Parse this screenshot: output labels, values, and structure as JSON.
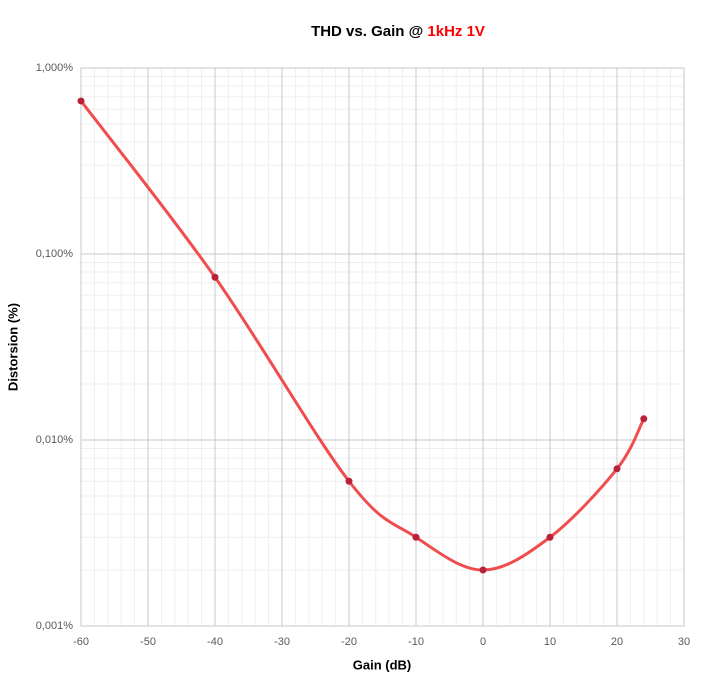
{
  "chart_data": {
    "type": "line",
    "title": "THD vs. Gain @",
    "title_highlight": "1kHz 1V",
    "x_label": "Gain (dB)",
    "y_label": "Distorsion (%)",
    "x": [
      -60,
      -40,
      -20,
      -10,
      0,
      10,
      20,
      24
    ],
    "series": [
      {
        "name": "THD",
        "color": "#f04e4e",
        "marker_color": "#b8213a",
        "values": [
          0.665,
          0.075,
          0.006,
          0.003,
          0.002,
          0.003,
          0.007,
          0.013
        ]
      }
    ],
    "xlim": [
      -60,
      30
    ],
    "xticks": [
      -60,
      -50,
      -40,
      -30,
      -20,
      -10,
      0,
      10,
      20,
      30
    ],
    "ylim": [
      0.001,
      1
    ],
    "log_y": true,
    "yticks": [
      {
        "value": 0.001,
        "label": "0,001%"
      },
      {
        "value": 0.01,
        "label": "0,010%"
      },
      {
        "value": 0.1,
        "label": "0,100%"
      },
      {
        "value": 1,
        "label": "1,000%"
      }
    ],
    "grid": true
  }
}
